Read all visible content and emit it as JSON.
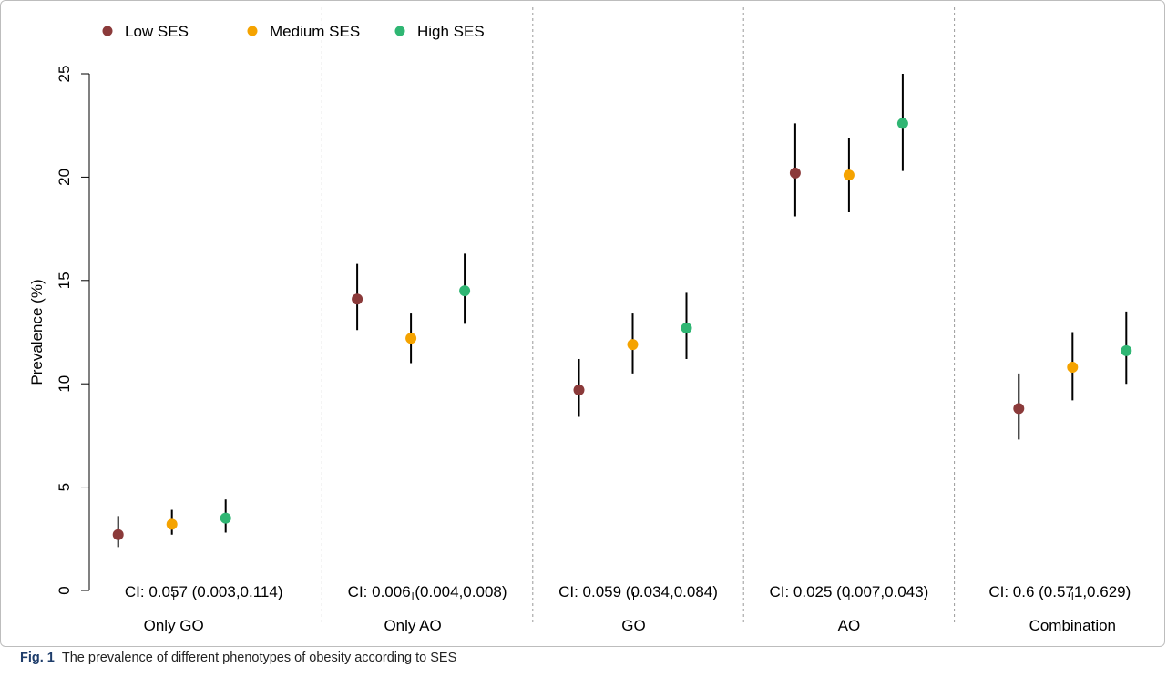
{
  "caption": {
    "label": "Fig. 1",
    "text": "The prevalence of different phenotypes of obesity according to SES"
  },
  "colors": {
    "low": "#8b3a3a",
    "medium": "#f5a300",
    "high": "#2fb673"
  },
  "chart_data": {
    "type": "scatter",
    "title": "",
    "xlabel": "",
    "ylabel": "Prevalence (%)",
    "ylim": [
      0,
      25
    ],
    "yticks": [
      0,
      5,
      10,
      15,
      20,
      25
    ],
    "categories": [
      "Only GO",
      "Only AO",
      "GO",
      "AO",
      "Combination"
    ],
    "legend": {
      "placement": "top-left",
      "entries": [
        "Low SES",
        "Medium SES",
        "High SES"
      ]
    },
    "grid": false,
    "panel_separators": "dashed",
    "series": [
      {
        "name": "Low SES",
        "color": "#8b3a3a",
        "values": [
          2.7,
          14.1,
          9.7,
          20.2,
          8.8
        ],
        "lower": [
          2.1,
          12.6,
          8.4,
          18.1,
          7.3
        ],
        "upper": [
          3.6,
          15.8,
          11.2,
          22.6,
          10.5
        ]
      },
      {
        "name": "Medium SES",
        "color": "#f5a300",
        "values": [
          3.2,
          12.2,
          11.9,
          20.1,
          10.8
        ],
        "lower": [
          2.7,
          11.0,
          10.5,
          18.3,
          9.2
        ],
        "upper": [
          3.9,
          13.4,
          13.4,
          21.9,
          12.5
        ]
      },
      {
        "name": "High SES",
        "color": "#2fb673",
        "values": [
          3.5,
          14.5,
          12.7,
          22.6,
          11.6
        ],
        "lower": [
          2.8,
          12.9,
          11.2,
          20.3,
          10.0
        ],
        "upper": [
          4.4,
          16.3,
          14.4,
          25.0,
          13.5
        ]
      }
    ],
    "annotations": [
      "CI: 0.057 (0.003,0.114)",
      "CI: 0.006 (0.004,0.008)",
      "CI: 0.059 (0.034,0.084)",
      "CI: 0.025 (0.007,0.043)",
      "CI: 0.6 (0.571,0.629)"
    ]
  }
}
